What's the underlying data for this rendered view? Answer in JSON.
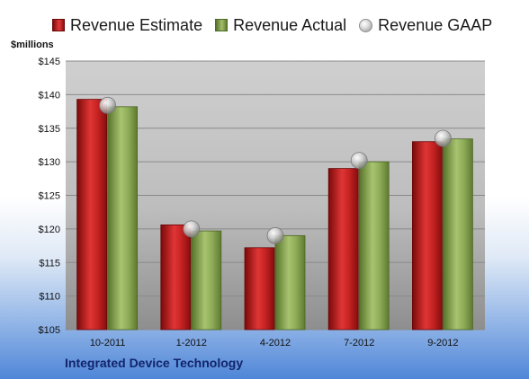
{
  "legend": {
    "estimate": "Revenue Estimate",
    "actual": "Revenue Actual",
    "gaap": "Revenue GAAP"
  },
  "unit_label": "$millions",
  "footer": "Integrated Device Technology",
  "colors": {
    "estimate": "#c62828",
    "actual": "#8aa856",
    "gaap": "#b5b5b5",
    "plot_bg": "#c0c0c0"
  },
  "chart_data": {
    "type": "bar",
    "categories": [
      "10-2011",
      "1-2012",
      "4-2012",
      "7-2012",
      "9-2012"
    ],
    "series": [
      {
        "name": "Revenue Estimate",
        "values": [
          139.3,
          120.6,
          117.2,
          129.0,
          133.0
        ]
      },
      {
        "name": "Revenue Actual",
        "values": [
          138.2,
          119.7,
          119.0,
          130.0,
          133.4
        ]
      },
      {
        "name": "Revenue GAAP",
        "values": [
          138.4,
          120.0,
          119.0,
          130.2,
          133.5
        ]
      }
    ],
    "ylabel": "$millions",
    "ylim": [
      105,
      145
    ],
    "yticks": [
      "$105",
      "$110",
      "$115",
      "$120",
      "$125",
      "$130",
      "$135",
      "$140",
      "$145"
    ],
    "grid": true,
    "legend_position": "top"
  }
}
